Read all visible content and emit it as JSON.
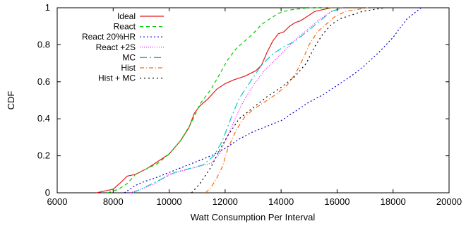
{
  "chart_data": {
    "type": "line",
    "title": "",
    "xlabel": "Watt Consumption Per Interval",
    "ylabel": "CDF",
    "xlim": [
      6000,
      20000
    ],
    "ylim": [
      0,
      1
    ],
    "xticks": [
      6000,
      8000,
      10000,
      12000,
      14000,
      16000,
      18000,
      20000
    ],
    "yticks": [
      0,
      0.2,
      0.4,
      0.6,
      0.8,
      1
    ],
    "xtick_labels": [
      "6000",
      "8000",
      "10000",
      "12000",
      "14000",
      "16000",
      "18000",
      "20000"
    ],
    "ytick_labels": [
      "0",
      "0.2",
      "0.4",
      "0.6",
      "0.8",
      "1"
    ],
    "grid": false,
    "legend_position": "top-left",
    "series": [
      {
        "name": "Ideal",
        "color": "#e41a1c",
        "dash": "solid",
        "x": [
          7400,
          7700,
          8000,
          8300,
          8500,
          8800,
          9200,
          9600,
          10000,
          10400,
          10700,
          10900,
          11100,
          11400,
          11700,
          12000,
          12300,
          12700,
          13100,
          13300,
          13500,
          13700,
          13900,
          14100,
          14300,
          14500,
          14700,
          14900,
          15200,
          15500,
          15800,
          16200
        ],
        "y": [
          0,
          0.01,
          0.02,
          0.06,
          0.09,
          0.1,
          0.13,
          0.17,
          0.21,
          0.28,
          0.35,
          0.43,
          0.47,
          0.51,
          0.56,
          0.59,
          0.61,
          0.63,
          0.66,
          0.69,
          0.76,
          0.82,
          0.86,
          0.87,
          0.9,
          0.92,
          0.93,
          0.95,
          0.98,
          0.99,
          1.0,
          1.0
        ]
      },
      {
        "name": "React",
        "color": "#00cc00",
        "dash": "5,4",
        "x": [
          7800,
          8200,
          8500,
          8800,
          9200,
          9600,
          10000,
          10400,
          10800,
          11100,
          11500,
          11800,
          12100,
          12400,
          12700,
          13000,
          13300,
          13500,
          13700,
          13900,
          14100,
          14400,
          14700,
          15000,
          15300,
          15600,
          16000
        ],
        "y": [
          0,
          0.02,
          0.05,
          0.1,
          0.13,
          0.16,
          0.21,
          0.28,
          0.38,
          0.48,
          0.56,
          0.64,
          0.72,
          0.78,
          0.82,
          0.86,
          0.91,
          0.93,
          0.95,
          0.97,
          0.98,
          0.99,
          0.995,
          1.0,
          1.0,
          1.0,
          1.0
        ]
      },
      {
        "name": "React 20%HR",
        "color": "#0000cc",
        "dash": "2,3",
        "x": [
          8400,
          8600,
          8800,
          9100,
          9500,
          10000,
          10500,
          11000,
          11500,
          12000,
          12500,
          13000,
          13500,
          14000,
          14500,
          15000,
          15500,
          16000,
          16500,
          17000,
          17500,
          18000,
          18500,
          19000
        ],
        "y": [
          0,
          0.02,
          0.04,
          0.06,
          0.08,
          0.11,
          0.14,
          0.17,
          0.2,
          0.24,
          0.29,
          0.33,
          0.36,
          0.39,
          0.44,
          0.49,
          0.53,
          0.58,
          0.63,
          0.69,
          0.76,
          0.84,
          0.94,
          1.0
        ]
      },
      {
        "name": "React +2S",
        "color": "#ff00ff",
        "dash": "1,2",
        "x": [
          8600,
          9000,
          9500,
          10000,
          10500,
          11000,
          11500,
          11800,
          12000,
          12300,
          12600,
          13000,
          13400,
          13800,
          14200,
          14600,
          15000,
          15400,
          15800,
          16200
        ],
        "y": [
          0,
          0.02,
          0.05,
          0.1,
          0.12,
          0.14,
          0.16,
          0.21,
          0.28,
          0.38,
          0.48,
          0.58,
          0.66,
          0.72,
          0.78,
          0.84,
          0.89,
          0.94,
          0.98,
          1.0
        ]
      },
      {
        "name": "MC",
        "color": "#00cccc",
        "dash": "10,4,2,4",
        "x": [
          8700,
          9000,
          9400,
          9800,
          10200,
          10700,
          11200,
          11600,
          11900,
          12200,
          12500,
          12900,
          13300,
          13700,
          14100,
          14500,
          15000,
          15400,
          15800,
          16200
        ],
        "y": [
          0,
          0.02,
          0.05,
          0.08,
          0.11,
          0.13,
          0.15,
          0.2,
          0.28,
          0.4,
          0.51,
          0.6,
          0.69,
          0.75,
          0.79,
          0.82,
          0.88,
          0.93,
          0.98,
          1.0
        ]
      },
      {
        "name": "Hist",
        "color": "#ff6600",
        "dash": "6,3,1,3",
        "x": [
          11300,
          11500,
          11700,
          11900,
          12100,
          12400,
          12700,
          13000,
          13400,
          13800,
          14200,
          14500,
          14800,
          15000,
          15300,
          15600,
          15900,
          16300,
          16700,
          17100
        ],
        "y": [
          0,
          0.03,
          0.08,
          0.14,
          0.24,
          0.34,
          0.41,
          0.45,
          0.49,
          0.53,
          0.58,
          0.64,
          0.73,
          0.8,
          0.87,
          0.91,
          0.95,
          0.98,
          0.99,
          1.0
        ]
      },
      {
        "name": "Hist + MC",
        "color": "#000000",
        "dash": "2,4",
        "x": [
          10800,
          11100,
          11500,
          11800,
          12100,
          12500,
          13000,
          13500,
          14000,
          14500,
          14900,
          15200,
          15500,
          15800,
          16100,
          16500,
          16900,
          17300,
          17700
        ],
        "y": [
          0,
          0.05,
          0.14,
          0.23,
          0.31,
          0.4,
          0.46,
          0.52,
          0.57,
          0.63,
          0.7,
          0.79,
          0.86,
          0.91,
          0.94,
          0.96,
          0.98,
          0.99,
          1.0
        ]
      }
    ]
  }
}
